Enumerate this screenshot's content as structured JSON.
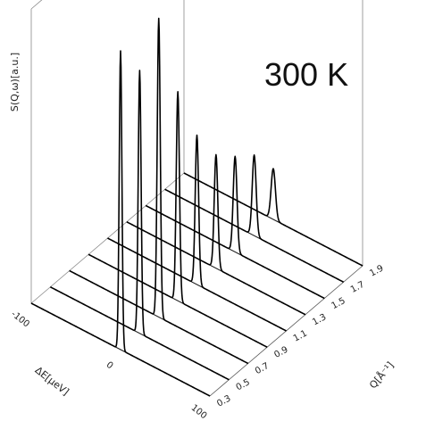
{
  "chart_data": {
    "type": "line",
    "annotation": "300 K",
    "zlabel": "S(Q,ω)[a.u.]",
    "xlabel": "ΔE[μeV]",
    "ylabel": "Q[Å⁻¹]",
    "x_ticks": [
      "-100",
      "0",
      "100"
    ],
    "y_ticks": [
      "0.3",
      "0.5",
      "0.7",
      "0.9",
      "1.1",
      "1.3",
      "1.5",
      "1.7",
      "1.9"
    ],
    "xlim": [
      -100,
      100
    ],
    "ylim": [
      0.3,
      1.9
    ],
    "grid": false,
    "series": [
      {
        "q": 0.3,
        "peak_energy": 0,
        "peak_height": 1.0,
        "width": 1.5
      },
      {
        "q": 0.5,
        "peak_energy": 0,
        "peak_height": 0.88,
        "width": 1.6
      },
      {
        "q": 0.7,
        "peak_energy": 0,
        "peak_height": 1.0,
        "width": 1.7
      },
      {
        "q": 0.9,
        "peak_energy": 0,
        "peak_height": 0.7,
        "width": 1.8
      },
      {
        "q": 1.1,
        "peak_energy": 0,
        "peak_height": 0.5,
        "width": 1.9
      },
      {
        "q": 1.3,
        "peak_energy": 0,
        "peak_height": 0.38,
        "width": 2.0
      },
      {
        "q": 1.5,
        "peak_energy": 0,
        "peak_height": 0.32,
        "width": 2.1
      },
      {
        "q": 1.7,
        "peak_energy": 0,
        "peak_height": 0.27,
        "width": 2.2
      },
      {
        "q": 1.9,
        "peak_energy": 0,
        "peak_height": 0.17,
        "width": 2.4
      }
    ]
  }
}
